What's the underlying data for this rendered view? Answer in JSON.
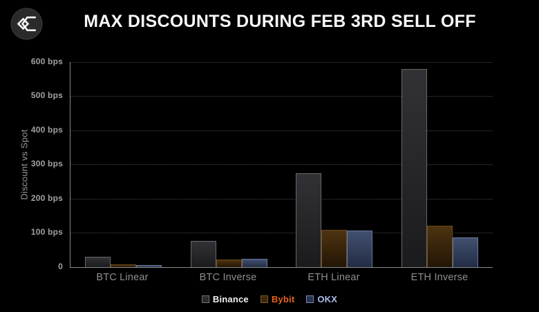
{
  "brand": {
    "icon": "sigma-diamond-logo",
    "circle_color": "#2a2a2a",
    "glyph_color": "#f5f5f5"
  },
  "header": {
    "title": "MAX DISCOUNTS DURING FEB 3RD SELL OFF"
  },
  "chart_data": {
    "type": "bar",
    "title": "MAX DISCOUNTS DURING FEB 3RD SELL OFF",
    "categories": [
      "BTC Linear",
      "BTC Inverse",
      "ETH Linear",
      "ETH Inverse"
    ],
    "series": [
      {
        "name": "Binance",
        "values": [
          30,
          77,
          275,
          580
        ],
        "fill_top": "#323236",
        "fill_bottom": "#1b1b1d",
        "border": "#68686c",
        "swatch": "#2b2b2e",
        "swatch_border": "#737377",
        "label_color": "#f2f2f2"
      },
      {
        "name": "Bybit",
        "values": [
          9,
          22,
          110,
          122
        ],
        "fill_top": "#4d3310",
        "fill_bottom": "#231505",
        "border": "#6d4b1c",
        "swatch": "#3d280e",
        "swatch_border": "#7a5a28",
        "label_color": "#e8631a"
      },
      {
        "name": "OKX",
        "values": [
          6,
          25,
          108,
          86
        ],
        "fill_top": "#415070",
        "fill_bottom": "#232c44",
        "border": "#68799f",
        "swatch": "#28324c",
        "swatch_border": "#7588b4",
        "label_color": "#a9bde9"
      }
    ],
    "xlabel": "",
    "ylabel": "Discount vs Spot",
    "ylim": [
      0,
      600
    ],
    "yticks": [
      {
        "value": 600,
        "label": "600 bps"
      },
      {
        "value": 500,
        "label": "500 bps"
      },
      {
        "value": 400,
        "label": "400 bps"
      },
      {
        "value": 300,
        "label": "300 bps"
      },
      {
        "value": 200,
        "label": "200 bps"
      },
      {
        "value": 100,
        "label": "100 bps"
      },
      {
        "value": 0,
        "label": "0"
      }
    ],
    "grid": "horizontal-dotted",
    "gridline_color": "#48484b",
    "axis_line_color": "#8a8a8e",
    "legend_position": "bottom-center",
    "background_color": "#000000",
    "tick_label_color": "#a2a2a2",
    "category_label_color": "#8f8f8f"
  }
}
